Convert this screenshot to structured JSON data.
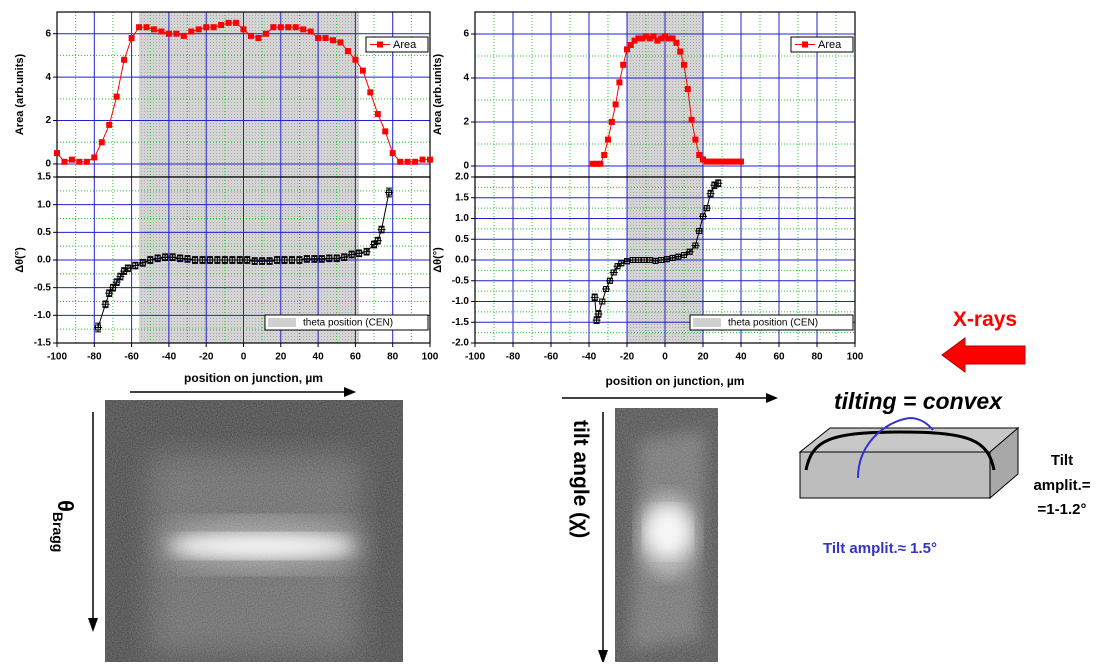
{
  "chart_data": [
    {
      "type": "line",
      "ylabel": "Area (arb.units)",
      "xlim": [
        -100,
        100
      ],
      "xticks": [
        -100,
        -80,
        -60,
        -40,
        -20,
        0,
        20,
        40,
        60,
        80,
        100
      ],
      "ylim": [
        -0.6,
        7
      ],
      "yticks": [
        0,
        2,
        4,
        6
      ],
      "grid": true,
      "legend": "top-right",
      "x": [
        -100,
        -96,
        -92,
        -88,
        -84,
        -80,
        -76,
        -72,
        -68,
        -64,
        -60,
        -56,
        -52,
        -48,
        -44,
        -40,
        -36,
        -32,
        -28,
        -24,
        -20,
        -16,
        -12,
        -8,
        -4,
        0,
        4,
        8,
        12,
        16,
        20,
        24,
        28,
        32,
        36,
        40,
        44,
        48,
        52,
        56,
        60,
        64,
        68,
        72,
        76,
        80,
        84,
        88,
        92,
        96,
        100
      ],
      "series": [
        {
          "name": "Area",
          "color": "#ff0000",
          "values": [
            0.5,
            0.1,
            0.2,
            0.1,
            0.1,
            0.3,
            1.0,
            1.8,
            3.1,
            4.8,
            5.8,
            6.3,
            6.3,
            6.2,
            6.1,
            6.0,
            6.0,
            5.9,
            6.1,
            6.2,
            6.3,
            6.3,
            6.4,
            6.5,
            6.5,
            6.2,
            5.9,
            5.8,
            6.0,
            6.3,
            6.3,
            6.3,
            6.3,
            6.2,
            6.1,
            5.8,
            5.8,
            5.7,
            5.6,
            5.2,
            4.8,
            4.3,
            3.3,
            2.3,
            1.5,
            0.5,
            0.1,
            0.1,
            0.1,
            0.2,
            0.2
          ]
        }
      ]
    },
    {
      "type": "errorbar",
      "ylabel": "Δθ(°)",
      "xlabel": "position on junction, µm",
      "xlim": [
        -100,
        100
      ],
      "xticks": [
        -100,
        -80,
        -60,
        -40,
        -20,
        0,
        20,
        40,
        60,
        80,
        100
      ],
      "ylim": [
        -1.5,
        1.5
      ],
      "yticks": [
        1.5,
        {
          "value": 1,
          "label": "1.0"
        },
        0.5,
        {
          "value": 0,
          "label": "0.0"
        },
        -0.5,
        {
          "value": -1,
          "label": "-1.0"
        },
        -1.5
      ],
      "grid": true,
      "color": "#000000",
      "band": {
        "label": "theta position (CEN)",
        "range": [
          -56,
          62
        ],
        "color": "#d0d0d0"
      },
      "x": [
        -78,
        -74,
        -72,
        -70,
        -68,
        -66,
        -64,
        -62,
        -58,
        -54,
        -50,
        -46,
        -42,
        -38,
        -34,
        -30,
        -26,
        -22,
        -18,
        -14,
        -10,
        -6,
        -2,
        2,
        6,
        10,
        14,
        18,
        22,
        26,
        30,
        34,
        38,
        42,
        46,
        50,
        54,
        58,
        62,
        66,
        70,
        72,
        74,
        78
      ],
      "values": [
        -1.22,
        -0.8,
        -0.6,
        -0.5,
        -0.4,
        -0.3,
        -0.2,
        -0.15,
        -0.1,
        -0.05,
        0,
        0.03,
        0.05,
        0.05,
        0.03,
        0.02,
        0,
        0,
        0,
        0,
        0,
        0,
        0,
        0,
        -0.02,
        -0.02,
        -0.02,
        0,
        0,
        0,
        0,
        0.02,
        0.02,
        0.02,
        0.03,
        0.03,
        0.05,
        0.1,
        0.12,
        0.15,
        0.28,
        0.35,
        0.55,
        1.22
      ],
      "errors": [
        0.08,
        0.06,
        0.06,
        0.06,
        0.06,
        0.06,
        0.06,
        0.06,
        0.06,
        0.06,
        0.06,
        0.06,
        0.06,
        0.06,
        0.06,
        0.06,
        0.06,
        0.06,
        0.06,
        0.06,
        0.06,
        0.06,
        0.06,
        0.06,
        0.06,
        0.06,
        0.06,
        0.06,
        0.06,
        0.06,
        0.06,
        0.06,
        0.06,
        0.06,
        0.06,
        0.06,
        0.06,
        0.06,
        0.06,
        0.06,
        0.06,
        0.06,
        0.06,
        0.08
      ]
    },
    {
      "type": "line",
      "ylabel": "Area (arb.units)",
      "xlim": [
        -100,
        100
      ],
      "xticks": [
        -100,
        -80,
        -60,
        -40,
        -20,
        0,
        20,
        40,
        60,
        80,
        100
      ],
      "ylim": [
        -0.5,
        7
      ],
      "yticks": [
        0,
        2,
        4,
        6
      ],
      "grid": true,
      "legend": "top-right",
      "x": [
        -38,
        -36,
        -34,
        -32,
        -30,
        -28,
        -26,
        -24,
        -22,
        -20,
        -18,
        -16,
        -14,
        -12,
        -10,
        -8,
        -6,
        -4,
        -2,
        0,
        2,
        4,
        6,
        8,
        10,
        12,
        14,
        16,
        18,
        20,
        22,
        24,
        26,
        28,
        30,
        32,
        34,
        36,
        38,
        40
      ],
      "series": [
        {
          "name": "Area",
          "color": "#ff0000",
          "values": [
            0.1,
            0.1,
            0.1,
            0.5,
            1.2,
            2.0,
            2.8,
            3.8,
            4.6,
            5.3,
            5.5,
            5.7,
            5.8,
            5.8,
            5.9,
            5.8,
            5.9,
            5.7,
            5.8,
            5.9,
            5.8,
            5.8,
            5.6,
            5.2,
            4.6,
            3.5,
            2.1,
            1.2,
            0.5,
            0.3,
            0.2,
            0.2,
            0.2,
            0.2,
            0.2,
            0.2,
            0.2,
            0.2,
            0.2,
            0.2
          ]
        }
      ]
    },
    {
      "type": "errorbar",
      "ylabel": "Δθ(°)",
      "xlabel": "position on junction, µm",
      "xlim": [
        -100,
        100
      ],
      "xticks": [
        -100,
        -80,
        -60,
        -40,
        -20,
        0,
        20,
        40,
        60,
        80,
        100
      ],
      "ylim": [
        -2,
        2
      ],
      "yticks": [
        {
          "value": 2,
          "label": "2.0"
        },
        1.5,
        {
          "value": 1,
          "label": "1.0"
        },
        0.5,
        {
          "value": 0,
          "label": "0.0"
        },
        -0.5,
        {
          "value": -1,
          "label": "-1.0"
        },
        -1.5,
        {
          "value": -2,
          "label": "-2.0"
        }
      ],
      "grid": true,
      "color": "#000000",
      "band": {
        "label": "theta position (CEN)",
        "range": [
          -20,
          20
        ],
        "color": "#d0d0d0"
      },
      "x": [
        -37,
        -36,
        -35,
        -33,
        -31,
        -29,
        -27,
        -25,
        -23,
        -20,
        -17,
        -14,
        -11,
        -8,
        -5,
        -2,
        1,
        4,
        7,
        10,
        13,
        16,
        18,
        20,
        22,
        24,
        26,
        28
      ],
      "values": [
        -0.9,
        -1.45,
        -1.3,
        -1.0,
        -0.7,
        -0.5,
        -0.3,
        -0.15,
        -0.08,
        -0.03,
        0,
        0,
        0,
        0,
        -0.02,
        0,
        0.02,
        0.05,
        0.08,
        0.12,
        0.2,
        0.35,
        0.7,
        1.05,
        1.25,
        1.6,
        1.8,
        1.85
      ],
      "errors": [
        0.08,
        0.08,
        0.08,
        0.06,
        0.06,
        0.06,
        0.06,
        0.06,
        0.06,
        0.06,
        0.06,
        0.06,
        0.06,
        0.06,
        0.06,
        0.06,
        0.06,
        0.06,
        0.06,
        0.06,
        0.06,
        0.06,
        0.06,
        0.06,
        0.06,
        0.08,
        0.08,
        0.08
      ]
    }
  ],
  "annotations": {
    "theta_symbol": "θ",
    "theta_sub": "Bragg",
    "tilt_angle": "tilt angle (χ)",
    "xrays": "X-rays",
    "tilting": "tilting = convex",
    "tilt_blue": "Tilt amplit.≈ 1.5°",
    "tilt_right": [
      "Tilt",
      "amplit.=",
      "=1-1.2°"
    ]
  }
}
